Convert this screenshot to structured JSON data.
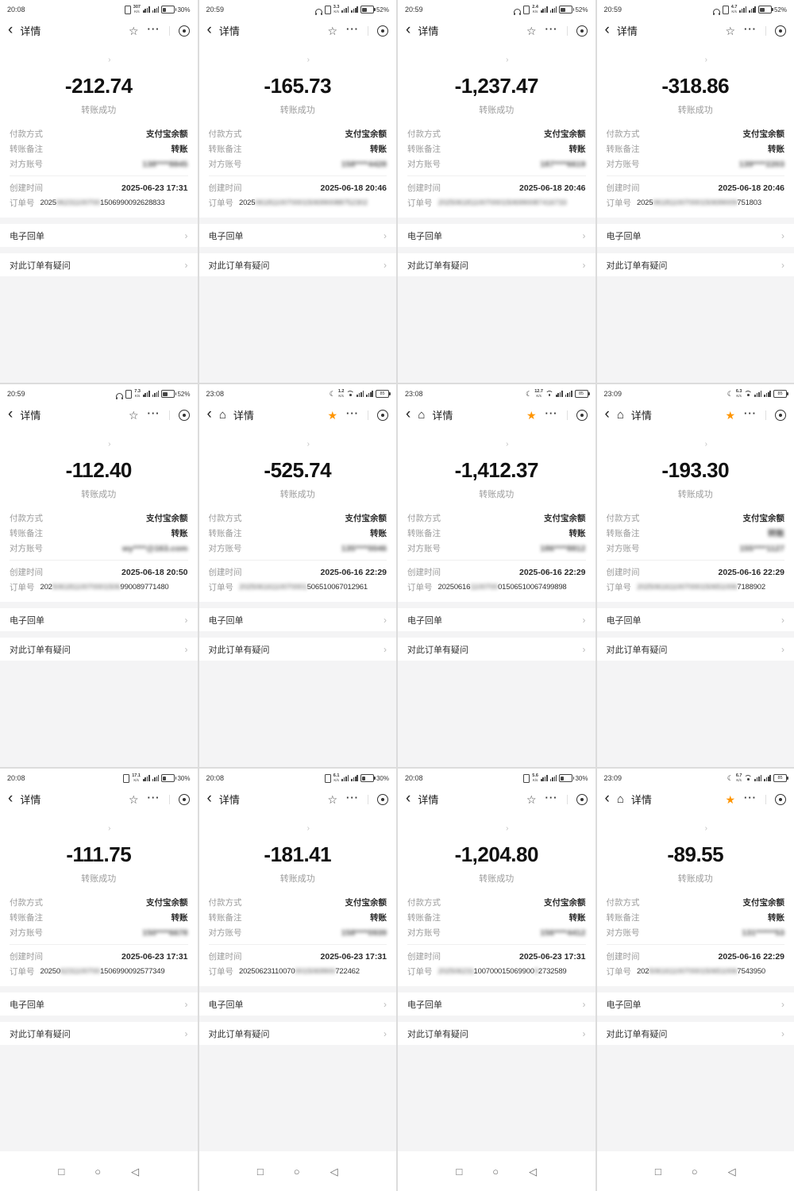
{
  "labels": {
    "detail_title": "详情",
    "status_success": "转账成功",
    "payment_method_label": "付款方式",
    "payment_method_value": "支付宝余额",
    "note_label": "转账备注",
    "account_label": "对方账号",
    "created_label": "创建时间",
    "order_label": "订单号",
    "receipt_row": "电子回单",
    "question_row": "对此订单有疑问",
    "chevron": "›",
    "back_glyph": "‹",
    "home_glyph": "⌂",
    "star_outline": "☆",
    "star_filled": "★",
    "dots_glyph": "···",
    "moon_glyph": "☾",
    "android_recents": "□",
    "android_home": "○",
    "android_back": "◁"
  },
  "colors": {
    "accent_star": "#ff9500",
    "amount_text": "#111111",
    "label_gray": "#9a9a9a",
    "section_gray": "#f4f4f5"
  },
  "cells": [
    {
      "time": "20:08",
      "speed": "307",
      "speed_unit": "K/s",
      "battery": {
        "pct": 30,
        "label": "30%",
        "inside": false
      },
      "flags": {
        "moon": false,
        "headphone": false,
        "vibrate": true,
        "wifi": false
      },
      "nav": {
        "home": false,
        "star_filled": false
      },
      "avatar": [
        "#c49a6c",
        "#8a6844"
      ],
      "amount": "-212.74",
      "account": [
        {
          "t": "138****8845",
          "b": true
        }
      ],
      "note": [
        {
          "t": "转账",
          "b": false
        }
      ],
      "created": "2025-06-23 17:31",
      "order": [
        {
          "t": "2025",
          "b": false
        },
        {
          "t": "06231100700",
          "b": true
        },
        {
          "t": "1506990092628833",
          "b": false
        }
      ],
      "navbar": false
    },
    {
      "time": "20:59",
      "speed": "3.3",
      "speed_unit": "K/s",
      "battery": {
        "pct": 52,
        "label": "52%",
        "inside": false
      },
      "flags": {
        "moon": false,
        "headphone": true,
        "vibrate": true,
        "wifi": false
      },
      "nav": {
        "home": false,
        "star_filled": false
      },
      "avatar": [
        "#6b4a3a",
        "#4a3428"
      ],
      "amount": "-165.73",
      "account": [
        {
          "t": "158****4428",
          "b": true
        }
      ],
      "note": [
        {
          "t": "转账",
          "b": false
        }
      ],
      "created": "2025-06-18 20:46",
      "order": [
        {
          "t": "2025",
          "b": false
        },
        {
          "t": "0618110070001506990088752302",
          "b": true
        }
      ],
      "navbar": false
    },
    {
      "time": "20:59",
      "speed": "2.4",
      "speed_unit": "K/s",
      "battery": {
        "pct": 52,
        "label": "52%",
        "inside": false
      },
      "flags": {
        "moon": false,
        "headphone": true,
        "vibrate": true,
        "wifi": false
      },
      "nav": {
        "home": false,
        "star_filled": false
      },
      "avatar": [
        "#44484f",
        "#2c2f34"
      ],
      "amount": "-1,237.47",
      "account": [
        {
          "t": "187****6619",
          "b": true
        }
      ],
      "note": [
        {
          "t": "转账",
          "b": false
        }
      ],
      "created": "2025-06-18 20:46",
      "order": [
        {
          "t": "20250618",
          "b": true
        },
        {
          "t": "110070001506990087",
          "b": true
        },
        {
          "t": "416733",
          "b": true
        }
      ],
      "navbar": false
    },
    {
      "time": "20:59",
      "speed": "4.7",
      "speed_unit": "K/s",
      "battery": {
        "pct": 52,
        "label": "52%",
        "inside": false
      },
      "flags": {
        "moon": false,
        "headphone": true,
        "vibrate": true,
        "wifi": false
      },
      "nav": {
        "home": false,
        "star_filled": false
      },
      "avatar": [
        "#b08a62",
        "#7c5e40"
      ],
      "amount": "-318.86",
      "account": [
        {
          "t": "139****2203",
          "b": true
        }
      ],
      "note": [
        {
          "t": "转账",
          "b": false
        }
      ],
      "created": "2025-06-18 20:46",
      "order": [
        {
          "t": "2025",
          "b": false
        },
        {
          "t": "061811007000150699009",
          "b": true
        },
        {
          "t": "751803",
          "b": false
        }
      ],
      "navbar": false
    },
    {
      "time": "20:59",
      "speed": "7.3",
      "speed_unit": "K/s",
      "battery": {
        "pct": 52,
        "label": "52%",
        "inside": false
      },
      "flags": {
        "moon": false,
        "headphone": true,
        "vibrate": true,
        "wifi": false
      },
      "nav": {
        "home": false,
        "star_filled": false
      },
      "avatar": [
        "#55504a",
        "#3a3632"
      ],
      "amount": "-112.40",
      "account": [
        {
          "t": "wy****@163.com",
          "b": true
        }
      ],
      "note": [
        {
          "t": "转账",
          "b": false
        }
      ],
      "created": "2025-06-18 20:50",
      "order": [
        {
          "t": "202",
          "b": false
        },
        {
          "t": "50618110070001506",
          "b": true
        },
        {
          "t": "990089771480",
          "b": false
        }
      ],
      "navbar": false
    },
    {
      "time": "23:08",
      "speed": "1.2",
      "speed_unit": "K/s",
      "battery": {
        "pct": 85,
        "label": "85",
        "inside": true
      },
      "flags": {
        "moon": true,
        "headphone": false,
        "vibrate": false,
        "wifi": true
      },
      "nav": {
        "home": true,
        "star_filled": true
      },
      "avatar": [
        "#8a6a50",
        "#5f4736"
      ],
      "amount": "-525.74",
      "account": [
        {
          "t": "135****0046",
          "b": true
        }
      ],
      "note": [
        {
          "t": "转账",
          "b": false
        }
      ],
      "created": "2025-06-16 22:29",
      "order": [
        {
          "t": "20250616110070001",
          "b": true
        },
        {
          "t": "506510067012961",
          "b": false
        }
      ],
      "navbar": false
    },
    {
      "time": "23:08",
      "speed": "12.7",
      "speed_unit": "K/s",
      "battery": {
        "pct": 85,
        "label": "85",
        "inside": true
      },
      "flags": {
        "moon": true,
        "headphone": false,
        "vibrate": false,
        "wifi": true
      },
      "nav": {
        "home": true,
        "star_filled": true
      },
      "avatar": [
        "#3e4248",
        "#26292d"
      ],
      "amount": "-1,412.37",
      "account": [
        {
          "t": "186****8812",
          "b": true
        }
      ],
      "note": [
        {
          "t": "转账",
          "b": false
        }
      ],
      "created": "2025-06-16 22:29",
      "order": [
        {
          "t": "20250616",
          "b": false
        },
        {
          "t": "1100700",
          "b": true
        },
        {
          "t": "01506510067499898",
          "b": false
        }
      ],
      "navbar": false
    },
    {
      "time": "23:09",
      "speed": "6.3",
      "speed_unit": "K/s",
      "battery": {
        "pct": 85,
        "label": "85",
        "inside": true
      },
      "flags": {
        "moon": true,
        "headphone": false,
        "vibrate": false,
        "wifi": true
      },
      "nav": {
        "home": true,
        "star_filled": true
      },
      "avatar": [
        "#9a7a58",
        "#6d553c"
      ],
      "amount": "-193.30",
      "account": [
        {
          "t": "155****1127",
          "b": true
        }
      ],
      "note": [
        {
          "t": "转账",
          "b": true
        }
      ],
      "created": "2025-06-16 22:29",
      "order": [
        {
          "t": "2025061611007000150651006",
          "b": true
        },
        {
          "t": "7188902",
          "b": false
        }
      ],
      "navbar": false
    },
    {
      "time": "20:08",
      "speed": "17.1",
      "speed_unit": "K/s",
      "battery": {
        "pct": 30,
        "label": "30%",
        "inside": false
      },
      "flags": {
        "moon": false,
        "headphone": false,
        "vibrate": true,
        "wifi": false
      },
      "nav": {
        "home": false,
        "star_filled": false
      },
      "avatar": [
        "#8a3b33",
        "#5e2722"
      ],
      "amount": "-111.75",
      "account": [
        {
          "t": "150****6678",
          "b": true
        }
      ],
      "note": [
        {
          "t": "转账",
          "b": false
        }
      ],
      "created": "2025-06-23 17:31",
      "order": [
        {
          "t": "20250",
          "b": false
        },
        {
          "t": "6231100700",
          "b": true
        },
        {
          "t": "1506990092577349",
          "b": false
        }
      ],
      "navbar": true
    },
    {
      "time": "20:08",
      "speed": "6.1",
      "speed_unit": "K/s",
      "battery": {
        "pct": 30,
        "label": "30%",
        "inside": false
      },
      "flags": {
        "moon": false,
        "headphone": false,
        "vibrate": true,
        "wifi": false
      },
      "nav": {
        "home": false,
        "star_filled": false
      },
      "avatar": [
        "#7a5a44",
        "#54402f"
      ],
      "amount": "-181.41",
      "account": [
        {
          "t": "158****0939",
          "b": true
        }
      ],
      "note": [
        {
          "t": "转账",
          "b": false
        }
      ],
      "created": "2025-06-23 17:31",
      "order": [
        {
          "t": "20250623110070",
          "b": false
        },
        {
          "t": "0015069900",
          "b": true
        },
        {
          "t": "722462",
          "b": false
        }
      ],
      "navbar": true
    },
    {
      "time": "20:08",
      "speed": "5.6",
      "speed_unit": "K/s",
      "battery": {
        "pct": 30,
        "label": "30%",
        "inside": false
      },
      "flags": {
        "moon": false,
        "headphone": false,
        "vibrate": true,
        "wifi": false
      },
      "nav": {
        "home": false,
        "star_filled": false
      },
      "avatar": [
        "#3c4046",
        "#25282c"
      ],
      "amount": "-1,204.80",
      "account": [
        {
          "t": "156****4412",
          "b": true
        }
      ],
      "note": [
        {
          "t": "转账",
          "b": false
        }
      ],
      "created": "2025-06-23 17:31",
      "order": [
        {
          "t": "202506231",
          "b": true
        },
        {
          "t": "100700015069900",
          "b": false
        },
        {
          "t": "9",
          "b": true
        },
        {
          "t": "2732589",
          "b": false
        }
      ],
      "navbar": true
    },
    {
      "time": "23:09",
      "speed": "6.7",
      "speed_unit": "K/s",
      "battery": {
        "pct": 85,
        "label": "85",
        "inside": true
      },
      "flags": {
        "moon": true,
        "headphone": false,
        "vibrate": false,
        "wifi": true
      },
      "nav": {
        "home": true,
        "star_filled": true
      },
      "avatar": [
        "#8c8078",
        "#5f5750"
      ],
      "amount": "-89.55",
      "account": [
        {
          "t": "131******53",
          "b": true
        }
      ],
      "note": [
        {
          "t": "转账",
          "b": false
        }
      ],
      "created": "2025-06-16 22:29",
      "order": [
        {
          "t": "202",
          "b": false
        },
        {
          "t": "5061611007000150651006",
          "b": true
        },
        {
          "t": "7543950",
          "b": false
        }
      ],
      "navbar": true
    }
  ]
}
